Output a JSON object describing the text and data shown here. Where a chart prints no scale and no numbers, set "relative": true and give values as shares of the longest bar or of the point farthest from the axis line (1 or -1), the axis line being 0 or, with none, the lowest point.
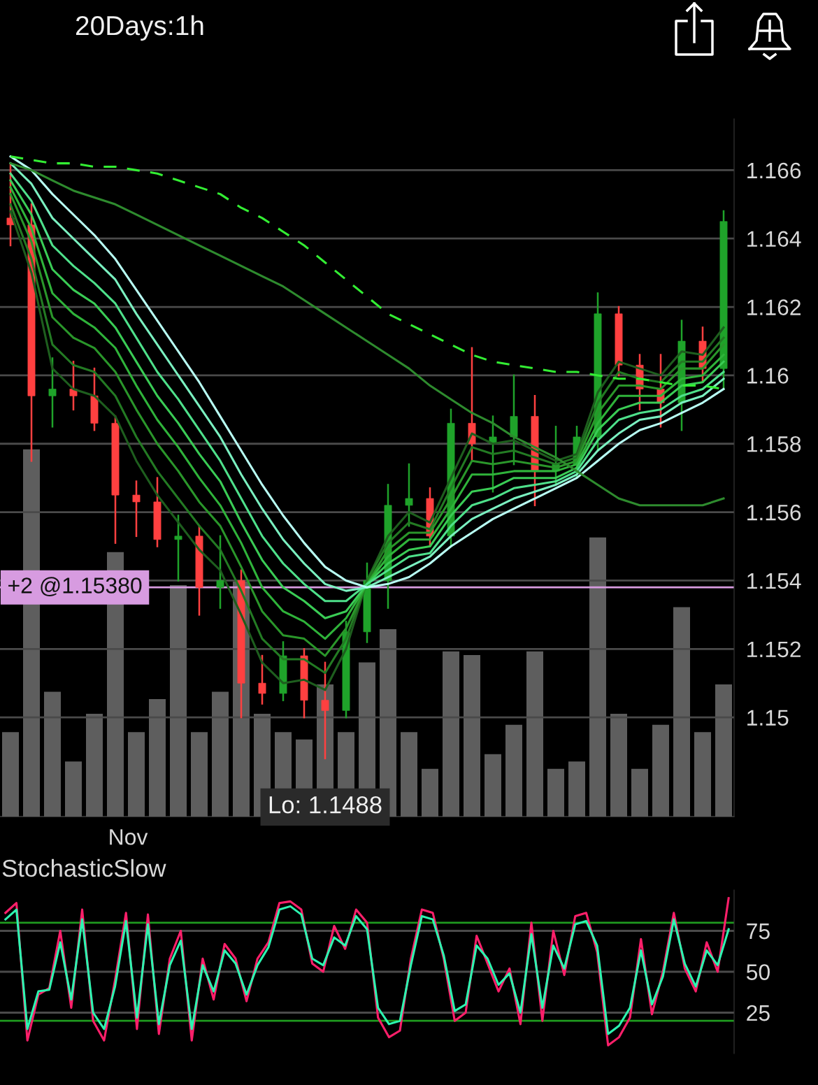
{
  "chart_data": [
    {
      "type": "candlestick",
      "title": "20Days:1h",
      "tick_labels": "y",
      "categories": [
        null,
        null,
        null,
        null,
        null,
        null,
        null,
        null,
        null,
        null,
        null,
        null,
        null,
        null,
        null,
        null,
        null,
        null,
        null,
        null,
        null,
        null,
        null,
        null,
        null,
        null,
        null,
        null,
        null,
        null,
        null,
        null,
        null,
        null,
        null
      ],
      "ohlc": [
        [
          1.1646,
          1.1662,
          1.1638,
          1.1644
        ],
        [
          1.1644,
          1.165,
          1.1575,
          1.1594
        ],
        [
          1.1594,
          1.1605,
          1.1585,
          1.1596
        ],
        [
          1.1596,
          1.1604,
          1.159,
          1.1594
        ],
        [
          1.1594,
          1.1602,
          1.1584,
          1.1586
        ],
        [
          1.1586,
          1.1588,
          1.1551,
          1.1565
        ],
        [
          1.1565,
          1.1569,
          1.1553,
          1.1563
        ],
        [
          1.1563,
          1.157,
          1.155,
          1.1552
        ],
        [
          1.1552,
          1.1559,
          1.154,
          1.1553
        ],
        [
          1.1553,
          1.1556,
          1.153,
          1.1538
        ],
        [
          1.1538,
          1.1553,
          1.1532,
          1.154
        ],
        [
          1.154,
          1.1543,
          1.15,
          1.151
        ],
        [
          1.151,
          1.1518,
          1.1504,
          1.1507
        ],
        [
          1.1507,
          1.1522,
          1.1505,
          1.1518
        ],
        [
          1.1518,
          1.152,
          1.15,
          1.1505
        ],
        [
          1.1505,
          1.1516,
          1.1488,
          1.1502
        ],
        [
          1.1502,
          1.1528,
          1.15,
          1.1525
        ],
        [
          1.1525,
          1.1545,
          1.1522,
          1.154
        ],
        [
          1.154,
          1.1568,
          1.1532,
          1.1562
        ],
        [
          1.1562,
          1.1574,
          1.1556,
          1.1564
        ],
        [
          1.1564,
          1.1567,
          1.155,
          1.1553
        ],
        [
          1.1553,
          1.159,
          1.155,
          1.1586
        ],
        [
          1.1586,
          1.1608,
          1.1575,
          1.158
        ],
        [
          1.158,
          1.1588,
          1.1566,
          1.1582
        ],
        [
          1.1582,
          1.16,
          1.1574,
          1.1588
        ],
        [
          1.1588,
          1.1594,
          1.1562,
          1.1572
        ],
        [
          1.1572,
          1.1585,
          1.1568,
          1.1574
        ],
        [
          1.1574,
          1.1585,
          1.157,
          1.1582
        ],
        [
          1.1582,
          1.1624,
          1.1578,
          1.1618
        ],
        [
          1.1618,
          1.162,
          1.16,
          1.1603
        ],
        [
          1.1603,
          1.1606,
          1.159,
          1.1596
        ],
        [
          1.1596,
          1.1606,
          1.1585,
          1.1592
        ],
        [
          1.1592,
          1.1616,
          1.1584,
          1.161
        ],
        [
          1.161,
          1.1614,
          1.1598,
          1.1602
        ],
        [
          1.1602,
          1.1648,
          1.1596,
          1.1645
        ]
      ],
      "series": [
        {
          "type": "line",
          "color": "#1e5e1e",
          "values": [
            1.1648,
            1.163,
            1.1602,
            1.1596,
            1.1594,
            1.1588,
            1.1575,
            1.1565,
            1.1557,
            1.1549,
            1.1543,
            1.153,
            1.1516,
            1.151,
            1.1511,
            1.1508,
            1.152,
            1.154,
            1.1553,
            1.156,
            1.1557,
            1.157,
            1.1583,
            1.158,
            1.1581,
            1.1578,
            1.1575,
            1.1577,
            1.1595,
            1.1604,
            1.1602,
            1.16,
            1.1607,
            1.1606,
            1.1614
          ]
        },
        {
          "type": "line",
          "color": "#237a23",
          "values": [
            1.165,
            1.1634,
            1.1609,
            1.1603,
            1.1601,
            1.1594,
            1.1582,
            1.1572,
            1.1564,
            1.1556,
            1.1549,
            1.1537,
            1.1523,
            1.1517,
            1.1517,
            1.1513,
            1.1523,
            1.154,
            1.1551,
            1.1557,
            1.1555,
            1.1567,
            1.1579,
            1.1577,
            1.1578,
            1.1576,
            1.1574,
            1.1576,
            1.1592,
            1.1601,
            1.1599,
            1.1598,
            1.1604,
            1.1604,
            1.1611
          ]
        },
        {
          "type": "line",
          "color": "#2a962a",
          "values": [
            1.1653,
            1.1639,
            1.1617,
            1.1611,
            1.1608,
            1.1601,
            1.159,
            1.158,
            1.1572,
            1.1563,
            1.1556,
            1.1544,
            1.1531,
            1.1524,
            1.1523,
            1.1518,
            1.1526,
            1.1539,
            1.1549,
            1.1554,
            1.1554,
            1.1564,
            1.1575,
            1.1574,
            1.1575,
            1.1574,
            1.1573,
            1.1575,
            1.1589,
            1.1597,
            1.1597,
            1.1596,
            1.1602,
            1.1602,
            1.1609
          ]
        },
        {
          "type": "line",
          "color": "#2fb33a",
          "values": [
            1.1655,
            1.1643,
            1.1624,
            1.1618,
            1.1614,
            1.1608,
            1.1597,
            1.1587,
            1.1579,
            1.157,
            1.1562,
            1.1551,
            1.1538,
            1.1531,
            1.1528,
            1.1523,
            1.1529,
            1.1539,
            1.1547,
            1.1552,
            1.1552,
            1.1561,
            1.1571,
            1.1571,
            1.1572,
            1.1572,
            1.1572,
            1.1574,
            1.1586,
            1.1594,
            1.1594,
            1.1594,
            1.1599,
            1.16,
            1.1606
          ]
        },
        {
          "type": "line",
          "color": "#3acc55",
          "values": [
            1.1657,
            1.1647,
            1.1631,
            1.1625,
            1.1621,
            1.1614,
            1.1604,
            1.1594,
            1.1586,
            1.1577,
            1.1569,
            1.1557,
            1.1546,
            1.1538,
            1.1534,
            1.1529,
            1.1531,
            1.1539,
            1.1545,
            1.1549,
            1.155,
            1.1559,
            1.1566,
            1.1567,
            1.157,
            1.157,
            1.157,
            1.1573,
            1.1584,
            1.159,
            1.1592,
            1.1592,
            1.1597,
            1.1598,
            1.1604
          ]
        },
        {
          "type": "line",
          "color": "#4ee08a",
          "values": [
            1.1659,
            1.1651,
            1.1638,
            1.1632,
            1.1627,
            1.1621,
            1.1611,
            1.1601,
            1.1593,
            1.1584,
            1.1575,
            1.1564,
            1.1553,
            1.1545,
            1.1539,
            1.1534,
            1.1534,
            1.1539,
            1.1543,
            1.1547,
            1.1548,
            1.1556,
            1.1562,
            1.1564,
            1.1567,
            1.1568,
            1.1569,
            1.1572,
            1.1581,
            1.1587,
            1.1589,
            1.159,
            1.1594,
            1.1596,
            1.1601
          ]
        },
        {
          "type": "line",
          "color": "#7af0c0",
          "values": [
            1.1662,
            1.1656,
            1.1646,
            1.164,
            1.1634,
            1.1628,
            1.1618,
            1.1609,
            1.16,
            1.1591,
            1.1582,
            1.1571,
            1.1561,
            1.1552,
            1.1545,
            1.1539,
            1.1537,
            1.1538,
            1.1541,
            1.1544,
            1.1547,
            1.1553,
            1.1558,
            1.1561,
            1.1564,
            1.1566,
            1.1568,
            1.1571,
            1.1578,
            1.1583,
            1.1587,
            1.1588,
            1.1592,
            1.1594,
            1.1599
          ]
        },
        {
          "type": "line",
          "color": "#b8fff4",
          "values": [
            1.1664,
            1.166,
            1.1653,
            1.1647,
            1.1641,
            1.1634,
            1.1625,
            1.1616,
            1.1607,
            1.1598,
            1.1588,
            1.1578,
            1.1568,
            1.1559,
            1.1551,
            1.1544,
            1.154,
            1.1538,
            1.1539,
            1.1541,
            1.1545,
            1.155,
            1.1554,
            1.1558,
            1.1561,
            1.1564,
            1.1567,
            1.157,
            1.1575,
            1.158,
            1.1584,
            1.1586,
            1.1589,
            1.1592,
            1.1596
          ]
        },
        {
          "type": "line",
          "color": "#2e8b2e",
          "values": [
            1.1662,
            1.166,
            1.1657,
            1.1654,
            1.1652,
            1.165,
            1.1647,
            1.1644,
            1.1641,
            1.1638,
            1.1635,
            1.1632,
            1.1629,
            1.1626,
            1.1622,
            1.1618,
            1.1614,
            1.161,
            1.1606,
            1.1602,
            1.1597,
            1.1593,
            1.1589,
            1.1586,
            1.1582,
            1.1579,
            1.1576,
            1.1572,
            1.1568,
            1.1564,
            1.1562,
            1.1562,
            1.1562,
            1.1562,
            1.1564
          ]
        },
        {
          "type": "line",
          "color": "#33ee33",
          "line_style": "dashed",
          "values": [
            1.1664,
            1.1663,
            1.1662,
            1.1662,
            1.1661,
            1.1661,
            1.166,
            1.1659,
            1.1657,
            1.1655,
            1.1653,
            1.1649,
            1.1646,
            1.1642,
            1.1638,
            1.1633,
            1.1628,
            1.1623,
            1.1618,
            1.1615,
            1.1612,
            1.1609,
            1.1606,
            1.1604,
            1.1603,
            1.1602,
            1.1601,
            1.1601,
            1.16,
            1.1599,
            1.1599,
            1.1598,
            1.1597,
            1.1597,
            1.1596
          ]
        }
      ],
      "ylim": [
        1.1471,
        1.1675
      ],
      "yticks": [
        1.15,
        1.152,
        1.154,
        1.156,
        1.158,
        1.16,
        1.162,
        1.164,
        1.166
      ],
      "grid": "y",
      "ref_lines": [
        {
          "axis": "y",
          "value": 1.1538,
          "label": "+2 @1.15380",
          "color": "#d79be0"
        }
      ],
      "annotations": [
        {
          "text": "Lo: 1.1488",
          "y": 1.1488
        },
        "Nov"
      ]
    },
    {
      "type": "bar",
      "relative": true,
      "color": "#5e5e5e",
      "tick_labels": false,
      "categories": [
        null,
        null,
        null,
        null,
        null,
        null,
        null,
        null,
        null,
        null,
        null,
        null,
        null,
        null,
        null,
        null,
        null,
        null,
        null,
        null,
        null,
        null,
        null,
        null,
        null,
        null,
        null,
        null,
        null,
        null,
        null,
        null,
        null,
        null,
        null
      ],
      "values": [
        0.23,
        1,
        0.34,
        0.15,
        0.28,
        0.72,
        0.23,
        0.32,
        0.63,
        0.23,
        0.34,
        0.64,
        0.28,
        0.23,
        0.21,
        0.36,
        0.23,
        0.42,
        0.51,
        0.23,
        0.13,
        0.45,
        0.44,
        0.17,
        0.25,
        0.45,
        0.13,
        0.15,
        0.76,
        0.28,
        0.13,
        0.25,
        0.57,
        0.23,
        0.36
      ]
    },
    {
      "type": "line",
      "title": "StochasticSlow",
      "tick_labels": "y",
      "categories": [
        null,
        null,
        null,
        null,
        null,
        null,
        null,
        null,
        null,
        null,
        null,
        null,
        null,
        null,
        null,
        null,
        null,
        null,
        null,
        null,
        null,
        null,
        null,
        null,
        null,
        null,
        null,
        null,
        null,
        null,
        null,
        null,
        null,
        null,
        null,
        null,
        null,
        null,
        null,
        null,
        null,
        null,
        null,
        null,
        null,
        null,
        null,
        null,
        null,
        null,
        null,
        null,
        null,
        null,
        null,
        null,
        null,
        null,
        null,
        null,
        null,
        null,
        null,
        null,
        null,
        null,
        null
      ],
      "series": [
        {
          "color": "#ff1f6a",
          "values": [
            86,
            92,
            8,
            36,
            40,
            75,
            28,
            88,
            20,
            8,
            45,
            86,
            15,
            85,
            12,
            58,
            75,
            8,
            58,
            33,
            67,
            58,
            32,
            58,
            68,
            92,
            93,
            88,
            55,
            50,
            78,
            64,
            88,
            80,
            22,
            10,
            14,
            58,
            88,
            86,
            58,
            20,
            25,
            72,
            55,
            38,
            52,
            18,
            80,
            20,
            75,
            48,
            84,
            86,
            62,
            5,
            10,
            22,
            70,
            24,
            50,
            86,
            52,
            38,
            68,
            50,
            95
          ]
        },
        {
          "color": "#2cf5b0",
          "values": [
            82,
            88,
            15,
            38,
            39,
            68,
            33,
            82,
            25,
            15,
            41,
            81,
            22,
            79,
            18,
            54,
            69,
            15,
            54,
            38,
            63,
            55,
            36,
            54,
            65,
            88,
            90,
            85,
            58,
            54,
            71,
            66,
            84,
            76,
            28,
            18,
            20,
            54,
            84,
            82,
            60,
            26,
            30,
            66,
            58,
            42,
            49,
            25,
            73,
            28,
            66,
            52,
            79,
            81,
            66,
            12,
            17,
            28,
            63,
            30,
            47,
            82,
            55,
            41,
            63,
            54,
            76
          ]
        }
      ],
      "ylim": [
        0,
        100
      ],
      "yticks": [
        25,
        50,
        75
      ],
      "grid": "y",
      "ref_lines": [
        {
          "axis": "y",
          "value": 80,
          "color": "#1f9a1f"
        },
        {
          "axis": "y",
          "value": 20,
          "color": "#1f9a1f"
        }
      ]
    }
  ]
}
